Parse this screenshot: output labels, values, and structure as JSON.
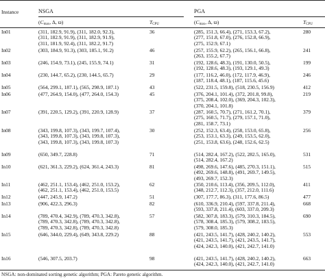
{
  "headers": {
    "instance": "Instance",
    "nsga": "NSGA",
    "pga": "PGA",
    "tuple_open": "(",
    "tuple_c": "C",
    "tuple_c_sub": "max",
    "tuple_rest": ", Δ, ϖ)",
    "t_main": "T",
    "t_sub": "CPU"
  },
  "rows": [
    {
      "instance": "In01",
      "nsga": [
        "(311, 182.9, 91.9), (311, 182.0, 92.3),",
        "(311, 182.9, 91.9), (311, 182.9, 91.9),",
        "(311, 181.9, 92.4), (311, 182.2, 91.7)"
      ],
      "nsga_t": "36",
      "pga": [
        "(285, 151.3, 66.4), (271, 153.3, 67.2),",
        "(277, 151.8, 67.0), (276, 152.8, 66.9),",
        "(275, 152.9, 67.1)"
      ],
      "pga_t": "280"
    },
    {
      "instance": "In02",
      "nsga": [
        "(303, 184.9, 91.3), (303, 185.1, 91.2)"
      ],
      "nsga_t": "46",
      "pga": [
        "(257, 155.9, 62.2), (265, 156.1, 66.8),",
        "(263, 155.2, 67.7)"
      ],
      "pga_t": "241"
    },
    {
      "instance": "In03",
      "nsga": [
        "(246, 154.9, 73.1), (245, 155.9, 74.1)"
      ],
      "nsga_t": "31",
      "pga": [
        "(192, 128.6, 48.3), (191, 130.0, 50.5),",
        "(192, 128.6, 48.3), (193, 129.1, 49.3)"
      ],
      "pga_t": "199"
    },
    {
      "instance": "In04",
      "nsga": [
        "(230, 144.7, 65.2), (230, 144.5, 65.7)"
      ],
      "nsga_t": "29",
      "pga": [
        "(177, 116.2, 46.0), (172, 117.9, 46.9),",
        "(187, 118.4, 48.1), (187, 115.6, 45.6)"
      ],
      "pga_t": "246"
    },
    {
      "instance": "In05",
      "nsga": [
        "(564, 299.1, 187.1), (565, 298.9, 187.1)"
      ],
      "nsga_t": "43",
      "pga": [
        "(522, 231.5, 159.8), (518, 230.5, 156.9)"
      ],
      "pga_t": "412"
    },
    {
      "instance": "In06",
      "nsga": [
        "(477, 264.9, 154.0), (477, 264.0, 154.3)"
      ],
      "nsga_t": "45",
      "pga": [
        "(376, 204.1, 101.4), (372, 201.8, 99.8),",
        "(375, 208.4, 102.0), (369, 204.3, 102.3),",
        "(370, 204.1, 101.8)"
      ],
      "pga_t": "219"
    },
    {
      "instance": "In07",
      "nsga": [
        "(391, 220.5, 129.2), (391, 220.9, 128.9)"
      ],
      "nsga_t": "37",
      "pga": [
        "(287, 160.5, 70.7), (271, 161.2, 70.1),",
        "(275, 160.5, 71.7), (279, 157.1, 71.0),",
        "(281, 158.7, 73.1)"
      ],
      "pga_t": "379"
    },
    {
      "instance": "In08",
      "nsga": [
        "(343, 199.8, 107.3), (343, 199.7, 107.4),",
        "(343, 199.8, 107.3), (343, 199.8, 107.3),",
        "(343, 199.8, 107.3), (343, 199.8, 107.3)"
      ],
      "nsga_t": "30",
      "pga": [
        "(252, 152.3, 63.4), (258, 153.0, 65.8),",
        "(253, 153.1, 63.3), (249, 153.5, 62.0),",
        "(251, 153.8, 63.6), (248, 152.6, 62.5)"
      ],
      "pga_t": "256"
    },
    {
      "instance": "In09",
      "nsga": [
        "(650, 349.7, 228.8)"
      ],
      "nsga_t": "71",
      "pga": [
        "(514, 282.4, 167.2), (522, 282.5, 165.0),",
        "(514, 282.4, 167.2)"
      ],
      "pga_t": "531"
    },
    {
      "instance": "In10",
      "nsga": [
        "(621, 361.3, 229.2), (624, 361.4, 243.3)"
      ],
      "nsga_t": "81",
      "pga": [
        "(498, 269.6, 147.6), (485, 270.3, 151.1),",
        "(492, 269.6, 148.8), (491, 269.7, 149.5),",
        "(493, 269.7, 152.3)"
      ],
      "pga_t": "515"
    },
    {
      "instance": "In11",
      "nsga": [
        "(462, 251.1, 153.4), (462, 251.0, 153.2),",
        "(462, 251.1, 153.4), (462, 251.0, 153.5)"
      ],
      "nsga_t": "62",
      "pga": [
        "(350, 210.6, 113.4), (356, 209.5, 112.0),",
        "(348, 212.7, 112.3), (357, 212.0, 111.6)"
      ],
      "pga_t": "411"
    },
    {
      "instance": "In12",
      "nsga": [
        "(447, 245.9, 147.2)"
      ],
      "nsga_t": "51",
      "pga": [
        "(307, 177.7, 86.3), (311, 177.6, 86.5)"
      ],
      "pga_t": "477"
    },
    {
      "instance": "In13",
      "nsga": [
        "(906, 422.3, 296.3)"
      ],
      "nsga_t": "82",
      "pga": [
        "(610, 336.9, 210.4), (597, 337.8, 211.4),",
        "(593, 337.8, 211.4), (603, 337.0, 209.3)"
      ],
      "pga_t": "668"
    },
    {
      "instance": "In14",
      "nsga": [
        "(789, 470.4, 342.9), (789, 470.3, 342.8),",
        "(789, 470.3, 342.8), (789, 470.3, 342.8),",
        "(789, 470.3, 342.8), (789, 470.3, 342.8)"
      ],
      "nsga_t": "57",
      "pga": [
        "(582, 307.8, 183.3), (579, 310.3, 184.5),",
        "(578, 308.4, 185.3), (579, 308.2, 183.5),",
        "(579, 308.0, 185.3)"
      ],
      "pga_t": "690"
    },
    {
      "instance": "In15",
      "nsga": [
        "(646, 344.0, 229.4), (649, 343.8, 229.2)"
      ],
      "nsga_t": "88",
      "pga": [
        "(421, 243.5, 141.7), (428, 240.2, 140.2),",
        "(421, 243.5, 141.7), (421, 243.5, 141.7),",
        "(424, 242.3, 140.0), (421, 242.7, 141.0)"
      ],
      "pga_t": "553"
    },
    {
      "instance": "In16",
      "nsga": [
        "(546, 307.5, 203.7)"
      ],
      "nsga_t": "98",
      "pga": [
        "(421, 243.5, 141.7), (428, 240.2, 140.2),",
        "(424, 242.3, 140.0), (421, 242.7, 141.0)"
      ],
      "pga_t": "663"
    }
  ],
  "footnote": "NSGA: non-dominated sorting genetic algorithm; PGA: Pareto genetic algorithm."
}
